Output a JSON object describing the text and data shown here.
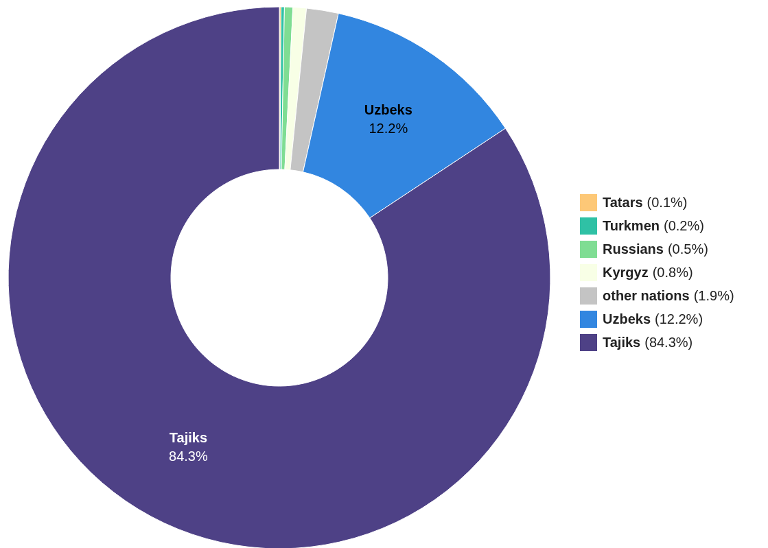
{
  "chart_data": {
    "type": "donut",
    "categories": [
      "Tatars",
      "Turkmen",
      "Russians",
      "Kyrgyz",
      "other nations",
      "Uzbeks",
      "Tajiks"
    ],
    "values": [
      0.1,
      0.2,
      0.5,
      0.8,
      1.9,
      12.2,
      84.3
    ],
    "colors": [
      "#fdc877",
      "#2fc1a5",
      "#7fdd93",
      "#f8ffe6",
      "#c4c4c4",
      "#3286e0",
      "#4e4186"
    ],
    "value_labels": [
      "(0.1%)",
      "(0.2%)",
      "(0.5%)",
      "(0.8%)",
      "(1.9%)",
      "(12.2%)",
      "(84.3%)"
    ],
    "annotations": [
      {
        "text": "12.2%",
        "x": "Uzbeks"
      },
      {
        "text": "84.3%",
        "x": "Tajiks"
      }
    ],
    "legend": "right"
  }
}
